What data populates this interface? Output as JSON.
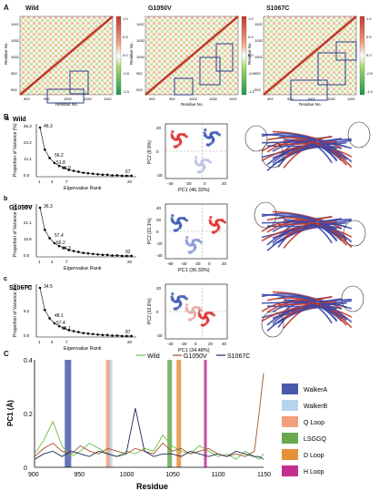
{
  "panels": {
    "A": {
      "letter": "A",
      "titles": [
        "Wild",
        "G1050V",
        "S1067C"
      ],
      "ylabel": "Residue No.",
      "xlabel": "Residue No.",
      "ticks": [
        "902",
        "952",
        "1002",
        "1052",
        "1102"
      ],
      "cbar_ticks": [
        "1.0",
        "0.5",
        "0.0",
        "-0.5",
        "-1.0"
      ]
    },
    "B": {
      "letter": "B",
      "rows": [
        {
          "sub": "a",
          "name": "Wild",
          "scree": {
            "labels": [
              "46.3",
              "56.2",
              "51.8",
              "63.9",
              "67"
            ],
            "yticks": [
              "46.3",
              "24.2",
              "12.1",
              "0.0"
            ],
            "xticks": [
              "1",
              "4",
              "7",
              "20"
            ],
            "ylabel": "Proportion of Variance (%)",
            "xlabel": "Eigenvalue Rank"
          },
          "pca": {
            "xlabel": "PC1 (46.33%)",
            "ylabel": "PC2 (9.9%)",
            "xticks": [
              "-40",
              "-20",
              "0",
              "20"
            ],
            "yticks": [
              "20",
              "0",
              "-20"
            ]
          }
        },
        {
          "sub": "b",
          "name": "G1050V",
          "scree": {
            "labels": [
              "36.3",
              "57.4",
              "66.2",
              "84.3",
              "92"
            ],
            "yticks": [
              "36.3",
              "21.1",
              "10.6",
              "0.0"
            ],
            "xticks": [
              "1",
              "4",
              "7",
              "20"
            ],
            "ylabel": "Proportion of Variance (%)",
            "xlabel": "Eigenvalue Rank"
          },
          "pca": {
            "xlabel": "PC1 (36.33%)",
            "ylabel": "PC2 (21.1%)",
            "xticks": [
              "-60",
              "-40",
              "-20",
              "0",
              "20"
            ],
            "yticks": [
              "40",
              "20",
              "0",
              "-20",
              "-40"
            ]
          }
        },
        {
          "sub": "c",
          "name": "S1067C",
          "scree": {
            "labels": [
              "34.5",
              "48.1",
              "57.4",
              "65.1",
              "87"
            ],
            "yticks": [
              "34.5",
              "9.2",
              "0.0"
            ],
            "xticks": [
              "1",
              "4",
              "7",
              "20"
            ],
            "ylabel": "Proportion of Variance (%)",
            "xlabel": "Eigenvalue Rank"
          },
          "pca": {
            "xlabel": "PC1 (34.48%)",
            "ylabel": "PC2 (13.6%)",
            "xticks": [
              "-40",
              "-20",
              "0",
              "20",
              "40"
            ],
            "yticks": [
              "20",
              "0",
              "-20"
            ]
          }
        }
      ]
    },
    "C": {
      "letter": "C"
    }
  },
  "chart_data": {
    "type": "line",
    "xlabel": "Residue",
    "ylabel": "PC1 (Å)",
    "xlim": [
      900,
      1150
    ],
    "ylim": [
      0,
      0.4
    ],
    "xticks": [
      "900",
      "950",
      "1000",
      "1050",
      "1100",
      "1150"
    ],
    "yticks": [
      "0",
      "0.2",
      "0.4"
    ],
    "x": [
      900,
      910,
      920,
      930,
      940,
      950,
      960,
      970,
      980,
      990,
      1000,
      1010,
      1020,
      1030,
      1040,
      1050,
      1060,
      1070,
      1080,
      1090,
      1100,
      1110,
      1120,
      1130,
      1140,
      1145,
      1150
    ],
    "series": [
      {
        "name": "Wild",
        "color": "#6cbf3f",
        "values": [
          0.05,
          0.1,
          0.17,
          0.08,
          0.04,
          0.06,
          0.09,
          0.07,
          0.05,
          0.04,
          0.06,
          0.05,
          0.07,
          0.06,
          0.12,
          0.08,
          0.06,
          0.05,
          0.08,
          0.06,
          0.04,
          0.05,
          0.03,
          0.06,
          0.04,
          0.03,
          0.05
        ]
      },
      {
        "name": "G1050V",
        "color": "#a0522d",
        "values": [
          0.04,
          0.07,
          0.09,
          0.06,
          0.05,
          0.08,
          0.06,
          0.05,
          0.07,
          0.06,
          0.05,
          0.07,
          0.06,
          0.05,
          0.09,
          0.06,
          0.07,
          0.05,
          0.06,
          0.07,
          0.05,
          0.04,
          0.05,
          0.04,
          0.06,
          0.2,
          0.35
        ]
      },
      {
        "name": "S1067C",
        "color": "#1f2a5c",
        "values": [
          0.03,
          0.05,
          0.06,
          0.04,
          0.06,
          0.05,
          0.04,
          0.06,
          0.05,
          0.04,
          0.05,
          0.22,
          0.06,
          0.04,
          0.05,
          0.05,
          0.04,
          0.06,
          0.05,
          0.04,
          0.05,
          0.04,
          0.06,
          0.05,
          0.04,
          0.04,
          0.03
        ]
      }
    ],
    "regions": [
      {
        "name": "WalkerA",
        "color": "#4a5aaa",
        "from": 933,
        "to": 940
      },
      {
        "name": "WalkerB",
        "color": "#b8d4ec",
        "from": 980,
        "to": 985
      },
      {
        "name": "Q Loop",
        "color": "#f0a07a",
        "from": 978,
        "to": 982
      },
      {
        "name": "LSGGQ",
        "color": "#6aa84f",
        "from": 1045,
        "to": 1050
      },
      {
        "name": "D Loop",
        "color": "#e69138",
        "from": 1055,
        "to": 1060
      },
      {
        "name": "H Loop",
        "color": "#c22f8f",
        "from": 1085,
        "to": 1088
      }
    ]
  }
}
